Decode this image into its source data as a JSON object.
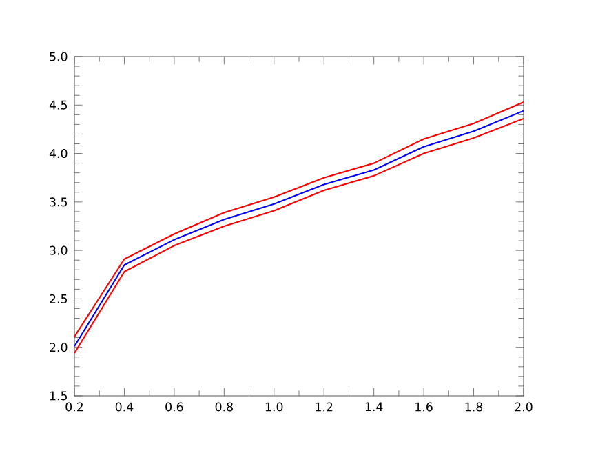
{
  "chart_data": {
    "type": "line",
    "x": [
      0.2,
      0.4,
      0.6,
      0.8,
      1.0,
      1.2,
      1.4,
      1.6,
      1.8,
      2.0
    ],
    "series": [
      {
        "color": "#0000ff",
        "values": [
          2.01,
          2.85,
          3.11,
          3.32,
          3.48,
          3.68,
          3.83,
          4.07,
          4.23,
          4.44
        ]
      },
      {
        "color": "#ff0000",
        "values": [
          2.11,
          2.91,
          3.17,
          3.39,
          3.55,
          3.75,
          3.9,
          4.15,
          4.31,
          4.53
        ]
      },
      {
        "color": "#ff0000",
        "values": [
          1.94,
          2.78,
          3.05,
          3.25,
          3.41,
          3.62,
          3.77,
          4.0,
          4.16,
          4.36
        ]
      }
    ],
    "xlim": [
      0.2,
      2.0
    ],
    "ylim": [
      1.5,
      5.0
    ],
    "xticks": [
      {
        "value": 0.2,
        "label": "0.2"
      },
      {
        "value": 0.4,
        "label": "0.4"
      },
      {
        "value": 0.6,
        "label": "0.6"
      },
      {
        "value": 0.8,
        "label": "0.8"
      },
      {
        "value": 1.0,
        "label": "1.0"
      },
      {
        "value": 1.2,
        "label": "1.2"
      },
      {
        "value": 1.4,
        "label": "1.4"
      },
      {
        "value": 1.6,
        "label": "1.6"
      },
      {
        "value": 1.8,
        "label": "1.8"
      },
      {
        "value": 2.0,
        "label": "2.0"
      }
    ],
    "yticks": [
      {
        "value": 1.5,
        "label": "1.5"
      },
      {
        "value": 2.0,
        "label": "2.0"
      },
      {
        "value": 2.5,
        "label": "2.5"
      },
      {
        "value": 3.0,
        "label": "3.0"
      },
      {
        "value": 3.5,
        "label": "3.5"
      },
      {
        "value": 4.0,
        "label": "4.0"
      },
      {
        "value": 4.5,
        "label": "4.5"
      },
      {
        "value": 5.0,
        "label": "5.0"
      }
    ]
  }
}
